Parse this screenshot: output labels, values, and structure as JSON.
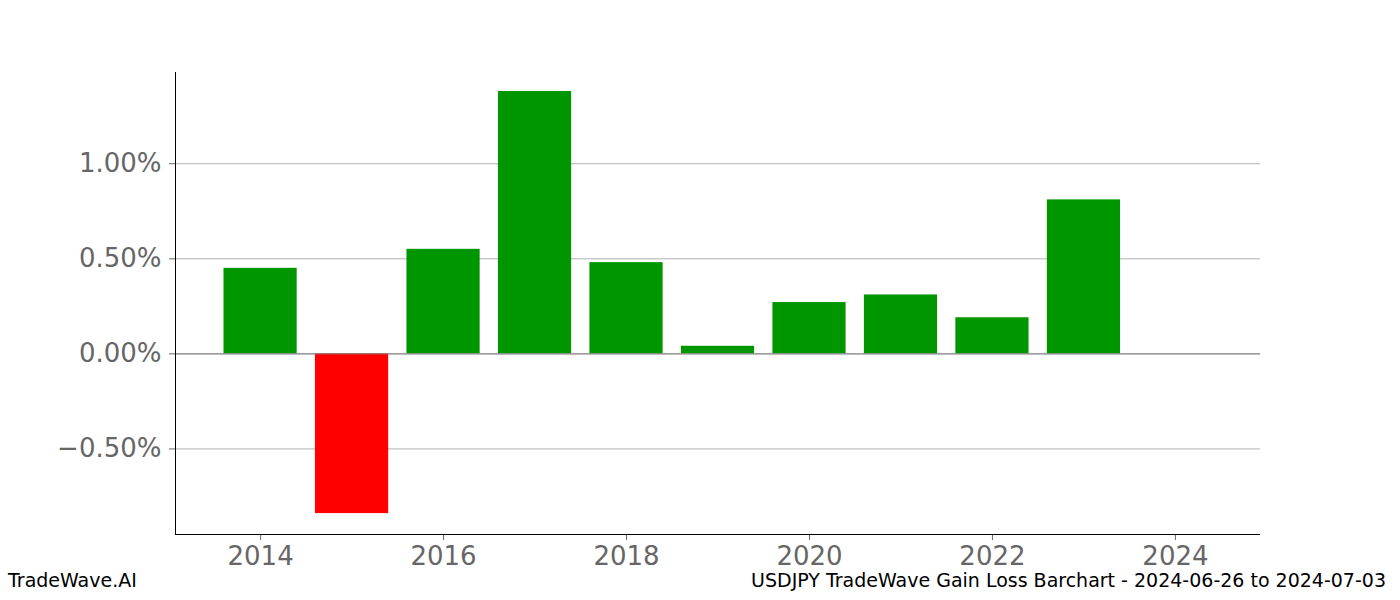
{
  "chart_data": {
    "type": "bar",
    "title": "USDJPY TradeWave Gain Loss Barchart - 2024-06-26 to 2024-07-03",
    "annotations": [
      "TradeWave.AI"
    ],
    "categories": [
      2014,
      2015,
      2016,
      2017,
      2018,
      2019,
      2020,
      2021,
      2022,
      2023
    ],
    "values": [
      0.45,
      -0.84,
      0.55,
      1.38,
      0.48,
      0.04,
      0.27,
      0.31,
      0.19,
      0.81
    ],
    "colors": [
      "#009600",
      "#ff0000",
      "#009600",
      "#009600",
      "#009600",
      "#009600",
      "#009600",
      "#009600",
      "#009600",
      "#009600"
    ],
    "xlim": [
      2013.07,
      2024.93
    ],
    "xticks": [
      2014,
      2016,
      2018,
      2020,
      2022,
      2024
    ],
    "ylim": [
      -0.95,
      1.48
    ],
    "yticks": [
      {
        "value": -0.5,
        "label": "−0.50%"
      },
      {
        "value": 0,
        "label": "0.00%"
      },
      {
        "value": 0.5,
        "label": "0.50%"
      },
      {
        "value": 1.0,
        "label": "1.00%"
      }
    ],
    "grid": true
  }
}
